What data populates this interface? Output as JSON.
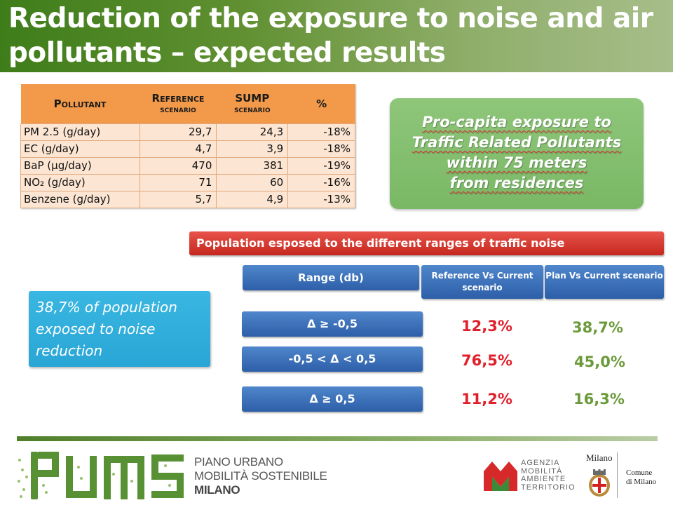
{
  "title": {
    "line1": "Reduction of the exposure to noise and air",
    "line2": "pollutants  – expected results"
  },
  "pollutant_table": {
    "headers": {
      "pollutant": "Pollutant",
      "reference_line1": "Reference",
      "reference_line2": "scenario",
      "sump_line1": "SUMP",
      "sump_line2": "scenario",
      "percent": "%"
    },
    "rows": [
      {
        "name": "PM 2.5 (g/day)",
        "reference": "29,7",
        "sump": "24,3",
        "percent": "-18%"
      },
      {
        "name": "EC (g/day)",
        "reference": "4,7",
        "sump": "3,9",
        "percent": "-18%"
      },
      {
        "name": "BaP (µg/day)",
        "reference": "470",
        "sump": "381",
        "percent": "-19%"
      },
      {
        "name": "NO₂ (g/day)",
        "reference": "71",
        "sump": "60",
        "percent": "-16%"
      },
      {
        "name": "Benzene (g/day)",
        "reference": "5,7",
        "sump": "4,9",
        "percent": "-13%"
      }
    ]
  },
  "green_box": {
    "line1": "Pro-capita exposure to",
    "line2": "Traffic Related Pollutants",
    "line3": "within 75 meters",
    "line4": "from residences"
  },
  "noise": {
    "banner": "Population esposed to the different ranges of traffic noise",
    "header_range": "Range (db)",
    "header_reference": "Reference  Vs  Current scenario",
    "header_plan": "Plan  Vs  Current scenario",
    "rows": [
      {
        "range": "Δ  ≥  -0,5",
        "reference": "12,3%",
        "plan": "38,7%"
      },
      {
        "range": "-0,5 < Δ < 0,5",
        "reference": "76,5%",
        "plan": "45,0%"
      },
      {
        "range": "Δ  ≥  0,5",
        "reference": "11,2%",
        "plan": "16,3%"
      }
    ]
  },
  "callout": "38,7% of population exposed to noise reduction",
  "footer": {
    "piano_line1": "PIANO URBANO",
    "piano_line2": "MOBILITÀ SOSTENIBILE",
    "piano_line3": "MILANO",
    "amat_line1": "AGENZIA",
    "amat_line2": "MOBILITÀ",
    "amat_line3": "AMBIENTE",
    "amat_line4": "TERRITORIO",
    "milano": "Milano",
    "comune_line1": "Comune",
    "comune_line2": "di Milano"
  },
  "colors": {
    "title_green": "#3e7d1a",
    "table_header": "#f2994a",
    "table_cell": "#fce5d2",
    "banner_red": "#d3342b",
    "button_blue": "#2d5fa8",
    "cyan": "#2aa6d6",
    "pct_red": "#e0202a",
    "pct_green": "#6b9a3a"
  }
}
